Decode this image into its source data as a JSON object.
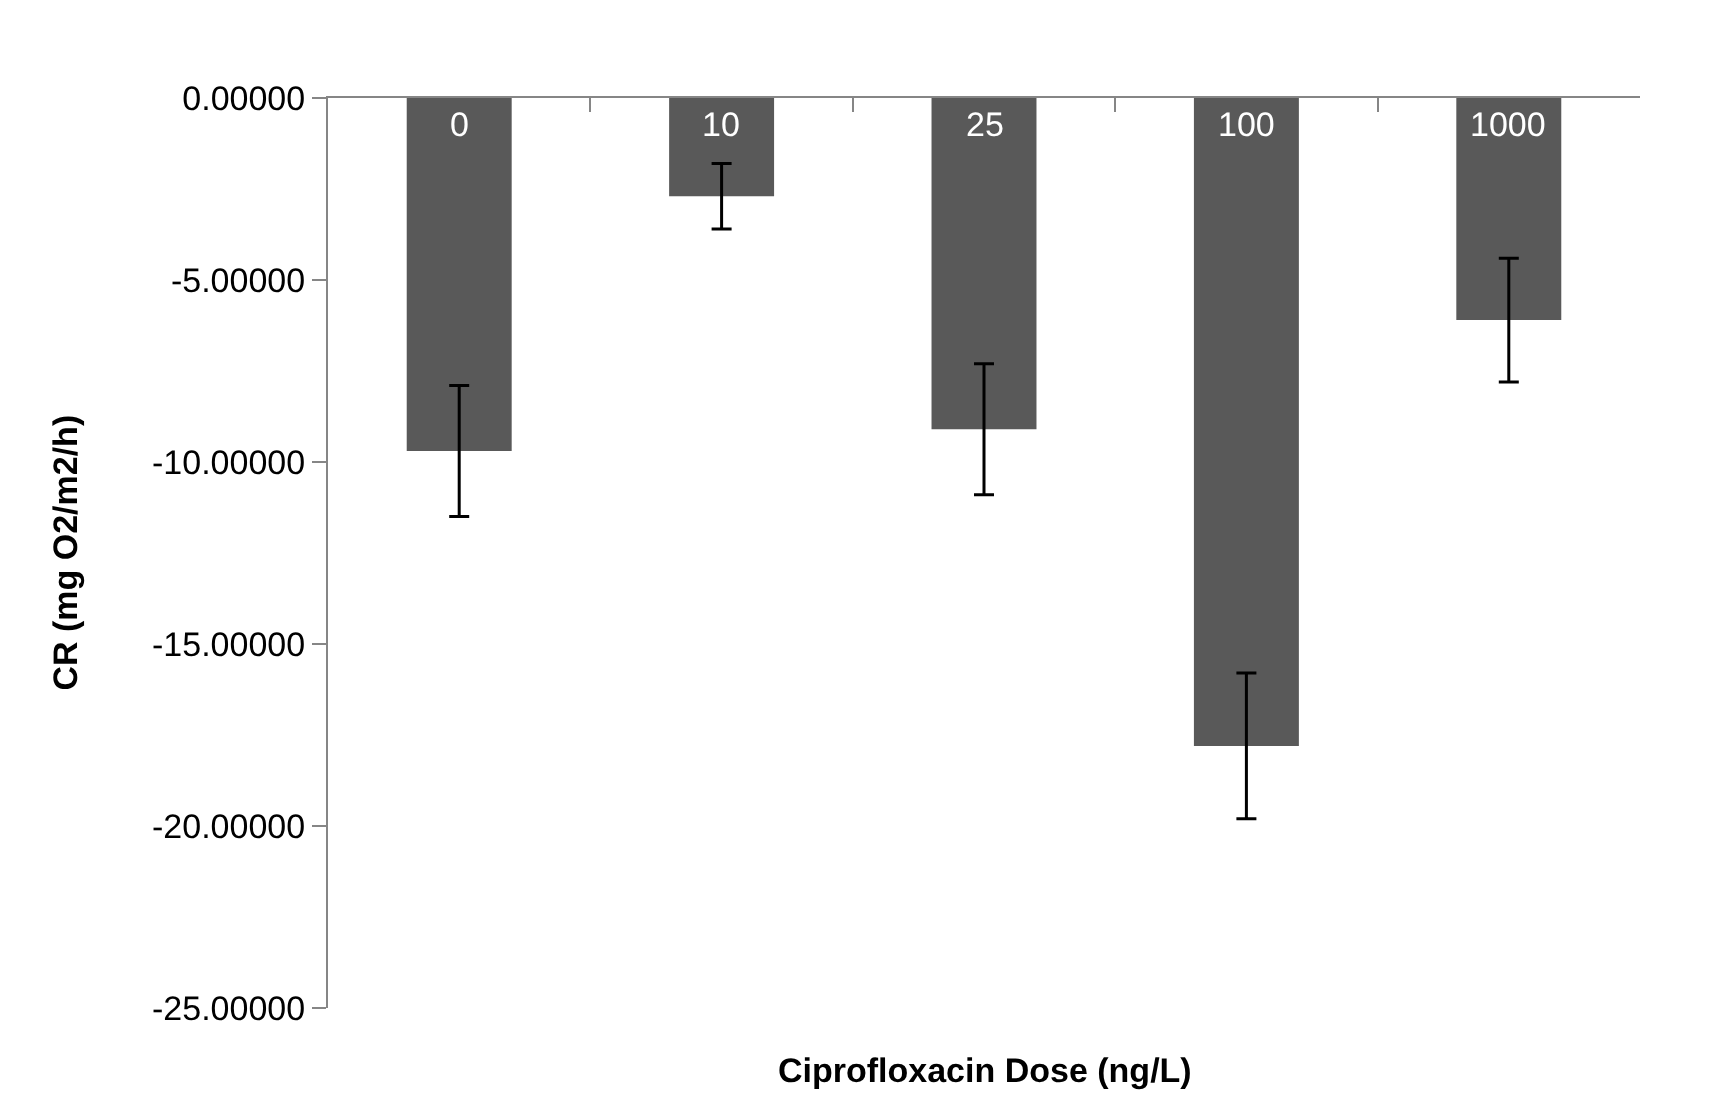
{
  "chart_data": {
    "type": "bar",
    "xlabel": "Ciprofloxacin Dose (ng/L)",
    "ylabel": "CR (mg O2/m2/h)",
    "categories": [
      "0",
      "10",
      "25",
      "100",
      "1000"
    ],
    "values": [
      -9.7,
      -2.7,
      -9.1,
      -17.8,
      -6.1
    ],
    "errors": [
      1.8,
      0.9,
      1.8,
      2.0,
      1.7
    ],
    "color": "#595959",
    "ylim": [
      -25,
      0
    ],
    "yticks": [
      {
        "value": 0,
        "label": "0.00000"
      },
      {
        "value": -5,
        "label": "-5.00000"
      },
      {
        "value": -10,
        "label": "-10.00000"
      },
      {
        "value": -15,
        "label": "-15.00000"
      },
      {
        "value": -20,
        "label": "-20.00000"
      },
      {
        "value": -25,
        "label": "-25.00000"
      }
    ]
  }
}
